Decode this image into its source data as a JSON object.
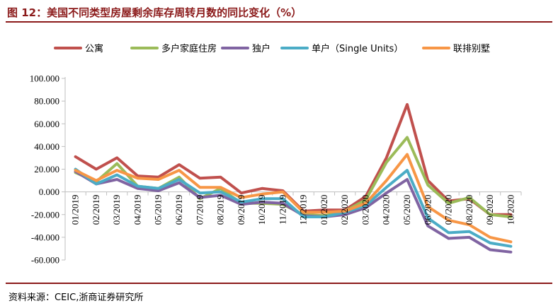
{
  "figure": {
    "title": "图 12：美国不同类型房屋剩余库存周转月数的同比变化（%）",
    "source": "资料来源：CEIC,浙商证券研究所"
  },
  "colors": {
    "title_red": "#8b1a1a",
    "axis": "#bfbfbf",
    "text": "#000000"
  },
  "chart_data": {
    "type": "line",
    "title": "美国不同类型房屋剩余库存周转月数的同比变化（%）",
    "xlabel": "",
    "ylabel": "",
    "ylim": [
      -60,
      100
    ],
    "yticks": [
      -60,
      -40,
      -20,
      0,
      20,
      40,
      60,
      80,
      100
    ],
    "ytick_labels": [
      "-60.000",
      "-40.000",
      "-20.000",
      "0.000",
      "20.000",
      "40.000",
      "60.000",
      "80.000",
      "100.000"
    ],
    "grid": false,
    "legend_position": "top",
    "categories": [
      "01/2019",
      "02/2019",
      "03/2019",
      "04/2019",
      "05/2019",
      "06/2019",
      "07/2019",
      "08/2019",
      "09/2019",
      "10/2019",
      "11/2019",
      "12/2019",
      "01/2020",
      "02/2020",
      "03/2020",
      "04/2020",
      "05/2020",
      "06/2020",
      "07/2020",
      "08/2020",
      "09/2020",
      "10/2020"
    ],
    "series": [
      {
        "name": "公寓",
        "color": "#c0504d",
        "values": [
          31,
          20,
          30,
          14,
          13,
          24,
          12,
          13,
          -1,
          3,
          1,
          -17,
          -16,
          -16,
          -4,
          30,
          77,
          10,
          -8,
          -6,
          -20,
          -20
        ]
      },
      {
        "name": "多户家庭住房",
        "color": "#9bbb59",
        "values": [
          17,
          9,
          25,
          5,
          3,
          13,
          -6,
          3,
          -10,
          -10,
          -11,
          -20,
          -21,
          -17,
          -7,
          26,
          48,
          6,
          -10,
          -5,
          -20,
          -22
        ]
      },
      {
        "name": "独户",
        "color": "#8064a2",
        "values": [
          18,
          7,
          11,
          3,
          1,
          8,
          -5,
          -3,
          -11,
          -9,
          -10,
          -21,
          -22,
          -20,
          -14,
          -1,
          11,
          -30,
          -41,
          -40,
          -51,
          -53
        ]
      },
      {
        "name": "单户（Single Units）",
        "color": "#4bacc6",
        "values": [
          20,
          7,
          15,
          5,
          3,
          11,
          -1,
          0,
          -9,
          -6,
          -6,
          -22,
          -22,
          -18,
          -12,
          4,
          19,
          -23,
          -36,
          -35,
          -45,
          -48
        ]
      },
      {
        "name": "联排别墅",
        "color": "#f79646",
        "values": [
          19,
          10,
          19,
          12,
          11,
          19,
          4,
          4,
          -5,
          -2,
          0,
          -18,
          -18,
          -17,
          -10,
          10,
          33,
          -13,
          -25,
          -29,
          -40,
          -44
        ]
      }
    ]
  }
}
